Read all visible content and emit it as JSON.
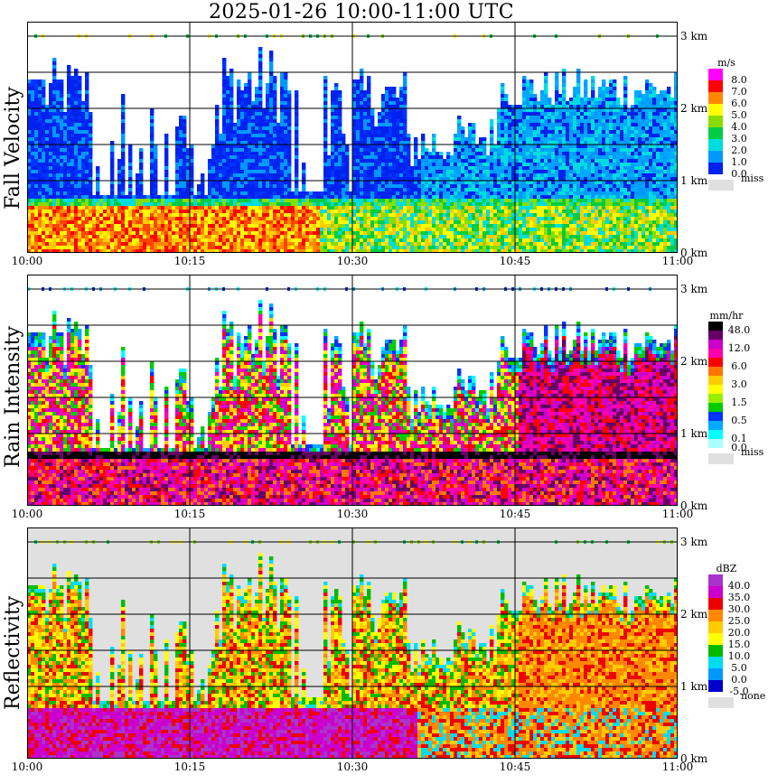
{
  "title": "2025-01-26  10:00-11:00 UTC",
  "time_ticks": [
    "10:00",
    "10:15",
    "10:30",
    "10:45",
    "11:00"
  ],
  "height_ticks": [
    "0 km",
    "1 km",
    "2 km",
    "3 km"
  ],
  "panels": [
    {
      "label": "Fall Velocity",
      "legend_title": "m/s",
      "legend_items": [
        {
          "label": "8.0",
          "color": "#ff00ff"
        },
        {
          "label": "7.0",
          "color": "#ff0000"
        },
        {
          "label": "6.0",
          "color": "#ff8800"
        },
        {
          "label": "5.0",
          "color": "#ffff00"
        },
        {
          "label": "4.0",
          "color": "#88dd00"
        },
        {
          "label": "3.0",
          "color": "#00cc44"
        },
        {
          "label": "2.0",
          "color": "#00dddd"
        },
        {
          "label": "1.0",
          "color": "#0099ff"
        },
        {
          "label": "0.0",
          "color": "#0022ee"
        }
      ],
      "missing_label": "miss"
    },
    {
      "label": "Rain Intensity",
      "legend_title": "mm/hr",
      "legend_items": [
        {
          "label": "48.0",
          "color": "#000000"
        },
        {
          "label": "",
          "color": "#660066"
        },
        {
          "label": "12.0",
          "color": "#cc00cc"
        },
        {
          "label": "",
          "color": "#ff00aa"
        },
        {
          "label": "6.0",
          "color": "#ff0000"
        },
        {
          "label": "",
          "color": "#ff7700"
        },
        {
          "label": "3.0",
          "color": "#ffcc00"
        },
        {
          "label": "",
          "color": "#ffff00"
        },
        {
          "label": "1.5",
          "color": "#99ee00"
        },
        {
          "label": "",
          "color": "#00cc00"
        },
        {
          "label": "0.5",
          "color": "#0033ff"
        },
        {
          "label": "",
          "color": "#00aaff"
        },
        {
          "label": "0.1",
          "color": "#00ffff"
        },
        {
          "label": "0.0",
          "color": "#aaffff"
        }
      ],
      "missing_label": "miss"
    },
    {
      "label": "Reflectivity",
      "legend_title": "dBZ",
      "legend_items": [
        {
          "label": "40.0",
          "color": "#aa33cc"
        },
        {
          "label": "35.0",
          "color": "#cc00cc"
        },
        {
          "label": "30.0",
          "color": "#ee0000"
        },
        {
          "label": "25.0",
          "color": "#ff8800"
        },
        {
          "label": "20.0",
          "color": "#ffcc00"
        },
        {
          "label": "15.0",
          "color": "#ffff00"
        },
        {
          "label": "10.0",
          "color": "#00bb00"
        },
        {
          "label": "5.0",
          "color": "#00ddee"
        },
        {
          "label": "0.0",
          "color": "#0099ff"
        },
        {
          "label": "-5.0",
          "color": "#0000cc"
        }
      ],
      "missing_label": "none"
    }
  ],
  "chart_data": [
    {
      "type": "heatmap",
      "title": "2025-01-26  10:00-11:00 UTC",
      "ylabel": "Fall Velocity",
      "x_range": [
        "10:00",
        "11:00"
      ],
      "y_range_km": [
        0,
        3.2
      ],
      "unit": "m/s",
      "colorbar_levels": [
        0.0,
        1.0,
        2.0,
        3.0,
        4.0,
        5.0,
        6.0,
        7.0,
        8.0
      ],
      "grid": true
    },
    {
      "type": "heatmap",
      "ylabel": "Rain Intensity",
      "x_range": [
        "10:00",
        "11:00"
      ],
      "y_range_km": [
        0,
        3.2
      ],
      "unit": "mm/hr",
      "colorbar_levels": [
        0.0,
        0.1,
        0.5,
        1.5,
        3.0,
        6.0,
        12.0,
        48.0
      ],
      "grid": true
    },
    {
      "type": "heatmap",
      "ylabel": "Reflectivity",
      "x_range": [
        "10:00",
        "11:00"
      ],
      "y_range_km": [
        0,
        3.2
      ],
      "unit": "dBZ",
      "colorbar_levels": [
        -5.0,
        0.0,
        5.0,
        10.0,
        15.0,
        20.0,
        25.0,
        30.0,
        35.0,
        40.0
      ],
      "grid": true
    }
  ]
}
